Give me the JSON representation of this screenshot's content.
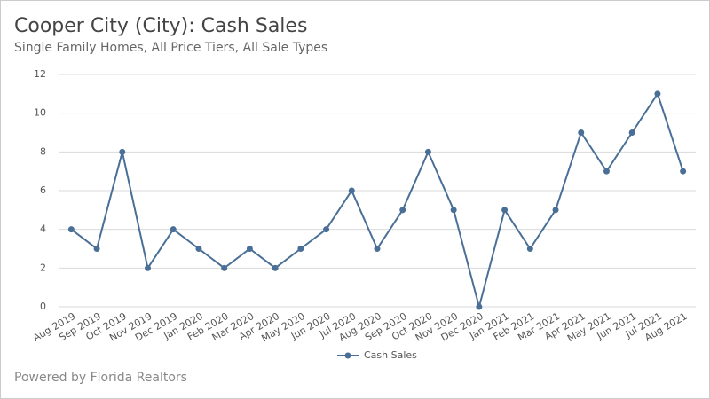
{
  "chart_data": {
    "type": "line",
    "title": "Cooper City (City): Cash Sales",
    "subtitle": "Single Family Homes, All Price Tiers, All Sale Types",
    "footer": "Powered by Florida Realtors",
    "categories": [
      "Aug 2019",
      "Sep 2019",
      "Oct 2019",
      "Nov 2019",
      "Dec 2019",
      "Jan 2020",
      "Feb 2020",
      "Mar 2020",
      "Apr 2020",
      "May 2020",
      "Jun 2020",
      "Jul 2020",
      "Aug 2020",
      "Sep 2020",
      "Oct 2020",
      "Nov 2020",
      "Dec 2020",
      "Jan 2021",
      "Feb 2021",
      "Mar 2021",
      "Apr 2021",
      "May 2021",
      "Jun 2021",
      "Jul 2021",
      "Aug 2021"
    ],
    "series": [
      {
        "name": "Cash Sales",
        "color": "#4a6f96",
        "values": [
          4,
          3,
          8,
          2,
          4,
          3,
          2,
          3,
          2,
          3,
          4,
          6,
          3,
          5,
          8,
          5,
          0,
          5,
          3,
          5,
          9,
          7,
          9,
          11,
          7
        ]
      }
    ],
    "ylim": [
      0,
      12
    ],
    "yticks": [
      0,
      2,
      4,
      6,
      8,
      10,
      12
    ],
    "grid": true,
    "legend": "bottom"
  }
}
